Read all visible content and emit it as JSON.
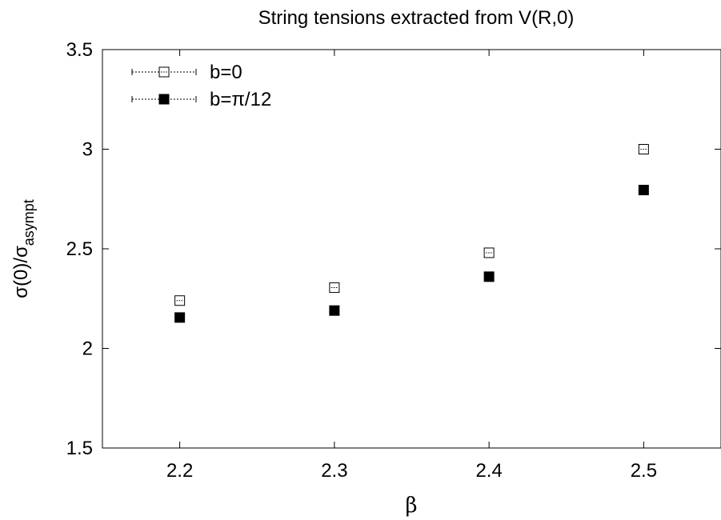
{
  "chart_data": {
    "type": "scatter",
    "title": "String tensions extracted from V(R,0)",
    "xlabel": "β",
    "ylabel_main": "σ(0)/σ",
    "ylabel_sub": "asympt",
    "xlim": [
      2.15,
      2.55
    ],
    "ylim": [
      1.5,
      3.5
    ],
    "x_ticks": [
      "2.2",
      "2.3",
      "2.4",
      "2.5"
    ],
    "y_ticks": [
      "1.5",
      "2",
      "2.5",
      "3",
      "3.5"
    ],
    "grid": false,
    "legend_position": "top-left",
    "series": [
      {
        "name": "b=0",
        "marker": "open-square",
        "color": "#000000",
        "points": [
          {
            "x": 2.2,
            "y": 2.24
          },
          {
            "x": 2.3,
            "y": 2.305
          },
          {
            "x": 2.4,
            "y": 2.48
          },
          {
            "x": 2.5,
            "y": 3.0
          }
        ]
      },
      {
        "name": "b=π/12",
        "marker": "filled-square",
        "color": "#000000",
        "points": [
          {
            "x": 2.2,
            "y": 2.155
          },
          {
            "x": 2.3,
            "y": 2.19
          },
          {
            "x": 2.4,
            "y": 2.36
          },
          {
            "x": 2.5,
            "y": 2.795
          }
        ]
      }
    ]
  }
}
